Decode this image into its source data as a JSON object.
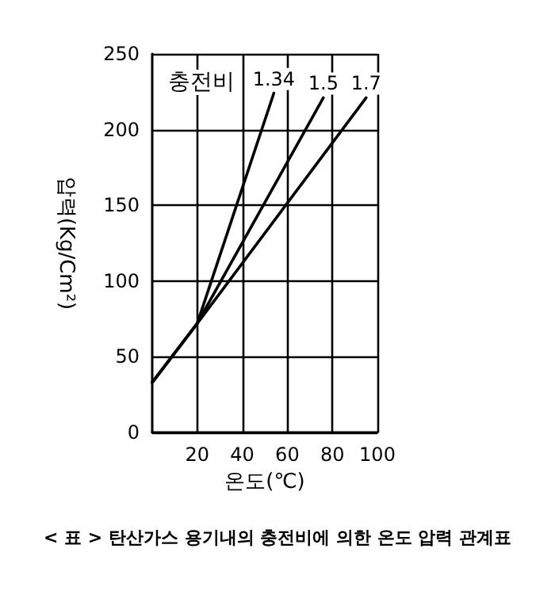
{
  "chart_data": {
    "type": "line",
    "legend_title": "충전비",
    "xlabel": "온도(℃)",
    "ylabel": "압력(Kg/Cm²)",
    "annotations": [
      "< 표 > 탄산가스 용기내의 충전비에 의한 온도 압력 관계표"
    ],
    "series": [
      {
        "name": "1.34",
        "color": "#000000",
        "x": [
          0,
          20,
          54
        ],
        "values": [
          33,
          72,
          224
        ]
      },
      {
        "name": "1.5",
        "color": "#000000",
        "x": [
          0,
          20,
          76
        ],
        "values": [
          33,
          72,
          221
        ]
      },
      {
        "name": "1.7",
        "color": "#000000",
        "x": [
          0,
          20,
          95
        ],
        "values": [
          33,
          72,
          221
        ]
      }
    ],
    "xlim": [
      0,
      100
    ],
    "xticks": [
      20,
      40,
      60,
      80,
      100
    ],
    "ylim": [
      0,
      250
    ],
    "yticks": [
      0,
      50,
      100,
      150,
      200,
      250
    ],
    "grid": true,
    "legend": false,
    "marker": "none",
    "line_style": "solid"
  }
}
